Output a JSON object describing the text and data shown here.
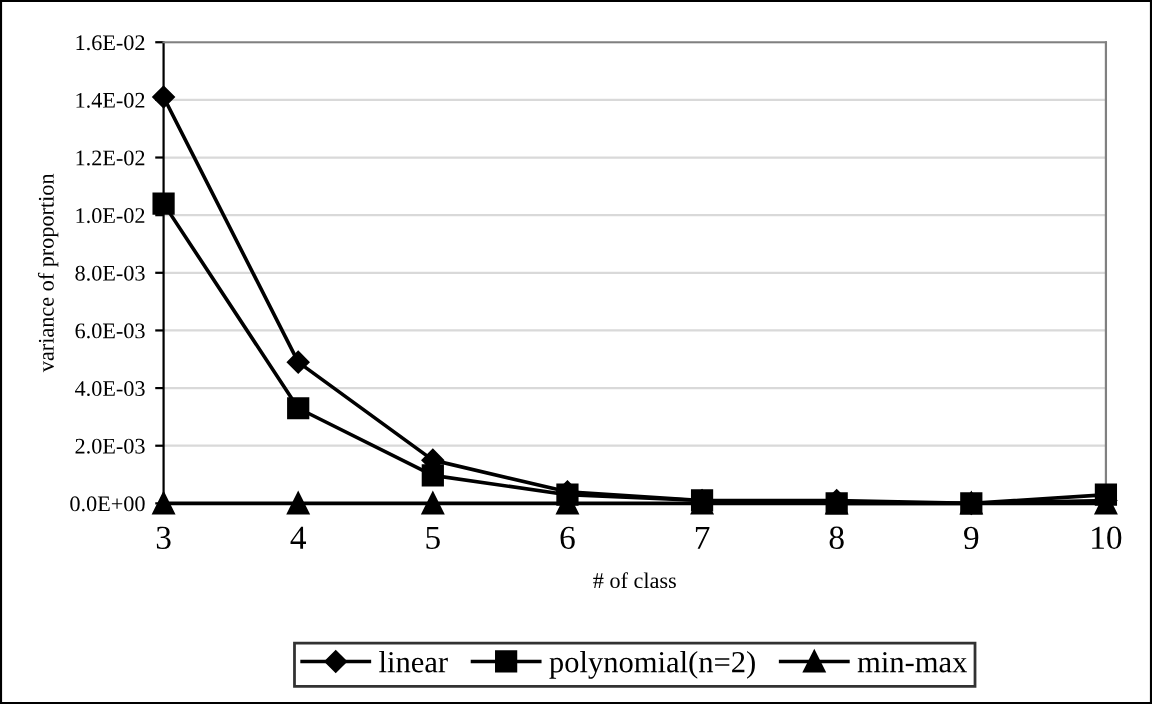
{
  "chart_data": {
    "type": "line",
    "xlabel": "# of class",
    "ylabel": "variance of proportion",
    "x": [
      3,
      4,
      5,
      6,
      7,
      8,
      9,
      10
    ],
    "xlim": [
      3,
      10
    ],
    "xticks": [
      3,
      4,
      5,
      6,
      7,
      8,
      9,
      10
    ],
    "ylim": [
      0,
      0.016
    ],
    "yticks": [
      {
        "value": 0,
        "label": "0.0E+00"
      },
      {
        "value": 0.002,
        "label": "2.0E-03"
      },
      {
        "value": 0.004,
        "label": "4.0E-03"
      },
      {
        "value": 0.006,
        "label": "6.0E-03"
      },
      {
        "value": 0.008,
        "label": "8.0E-03"
      },
      {
        "value": 0.01,
        "label": "1.0E-02"
      },
      {
        "value": 0.012,
        "label": "1.2E-02"
      },
      {
        "value": 0.014,
        "label": "1.4E-02"
      },
      {
        "value": 0.016,
        "label": "1.6E-02"
      }
    ],
    "grid": "y",
    "legend": "bottom",
    "line_style": "solid",
    "series": [
      {
        "name": "linear",
        "color": "#000000",
        "marker": "diamond",
        "values": [
          0.0141,
          0.0049,
          0.0015,
          0.0004,
          0.0001,
          0.0001,
          0,
          0.0001
        ]
      },
      {
        "name": "polynomial(n=2)",
        "color": "#000000",
        "marker": "square",
        "values": [
          0.0104,
          0.0033,
          0.00097,
          0.0003,
          0.0001,
          0,
          0,
          0.0003
        ]
      },
      {
        "name": "min-max",
        "color": "#000000",
        "marker": "triangle",
        "values": [
          0,
          0,
          0,
          0,
          0,
          0,
          0,
          0
        ]
      }
    ]
  }
}
